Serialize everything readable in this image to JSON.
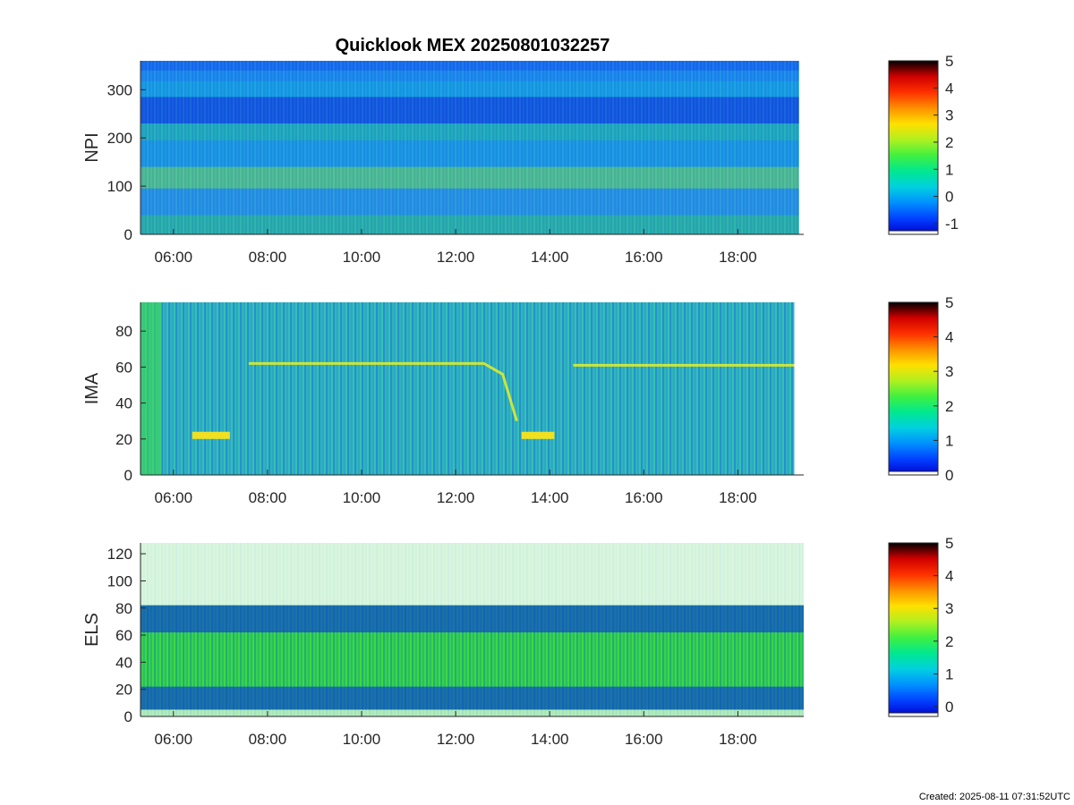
{
  "figure": {
    "title": "Quicklook MEX 20250801032257",
    "created_label": "Created: 2025-08-11 07:31:52UTC"
  },
  "colormap": [
    "#0000d0",
    "#0040ff",
    "#0090ff",
    "#00d0e0",
    "#00e890",
    "#40f040",
    "#b0f020",
    "#ffe000",
    "#ff9000",
    "#ff3000",
    "#d00000",
    "#000000"
  ],
  "chart_data": [
    {
      "type": "heatmap",
      "ylabel": "NPI",
      "x_ticks": [
        "06:00",
        "08:00",
        "10:00",
        "12:00",
        "14:00",
        "16:00",
        "18:00"
      ],
      "x_tick_hours": [
        6,
        8,
        10,
        12,
        14,
        16,
        18
      ],
      "xlim_hours": [
        5.3,
        19.4
      ],
      "data_xlim_hours": [
        5.3,
        19.3
      ],
      "ylim": [
        0,
        360
      ],
      "y_ticks": [
        0,
        100,
        200,
        300
      ],
      "colorbar": {
        "range": [
          -1.4,
          5
        ],
        "ticks": [
          -1,
          0,
          1,
          2,
          3,
          4,
          5
        ]
      },
      "typical_level": 0.8
    },
    {
      "type": "heatmap",
      "ylabel": "IMA",
      "x_ticks": [
        "06:00",
        "08:00",
        "10:00",
        "12:00",
        "14:00",
        "16:00",
        "18:00"
      ],
      "x_tick_hours": [
        6,
        8,
        10,
        12,
        14,
        16,
        18
      ],
      "xlim_hours": [
        5.3,
        19.4
      ],
      "data_xlim_hours": [
        5.3,
        19.2
      ],
      "ylim": [
        0,
        96
      ],
      "y_ticks": [
        0,
        20,
        40,
        60,
        80
      ],
      "colorbar": {
        "range": [
          0,
          5
        ],
        "ticks": [
          0,
          1,
          2,
          3,
          4,
          5
        ]
      },
      "typical_level": 1.8
    },
    {
      "type": "heatmap",
      "ylabel": "ELS",
      "x_ticks": [
        "06:00",
        "08:00",
        "10:00",
        "12:00",
        "14:00",
        "16:00",
        "18:00"
      ],
      "x_tick_hours": [
        6,
        8,
        10,
        12,
        14,
        16,
        18
      ],
      "xlim_hours": [
        5.3,
        19.4
      ],
      "data_xlim_hours": [
        5.3,
        19.4
      ],
      "ylim": [
        0,
        128
      ],
      "y_ticks": [
        0,
        20,
        40,
        60,
        80,
        100,
        120
      ],
      "colorbar": {
        "range": [
          -0.3,
          5
        ],
        "ticks": [
          0,
          1,
          2,
          3,
          4,
          5
        ]
      },
      "typical_level": 1.5
    }
  ]
}
